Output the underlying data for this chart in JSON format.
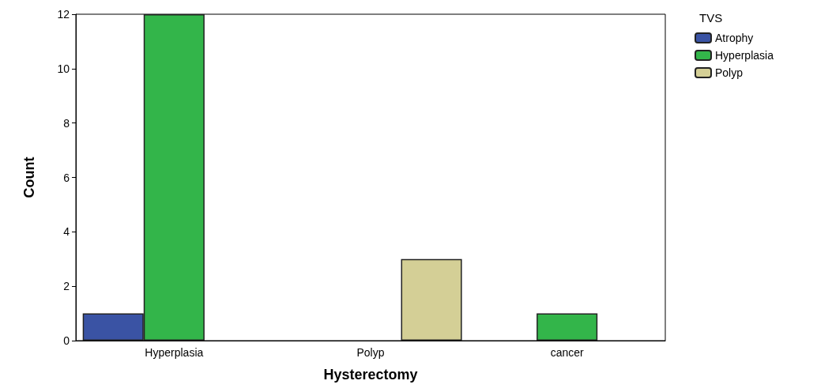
{
  "chart_data": {
    "type": "bar",
    "xlabel": "Hysterectomy",
    "ylabel": "Count",
    "legend_title": "TVS",
    "categories": [
      "Hyperplasia",
      "Polyp",
      "cancer"
    ],
    "series": [
      {
        "name": "Atrophy",
        "color": "#3a53a4",
        "values": [
          1,
          null,
          null
        ]
      },
      {
        "name": "Hyperplasia",
        "color": "#33b54a",
        "values": [
          12,
          null,
          1
        ]
      },
      {
        "name": "Polyp",
        "color": "#d4cf96",
        "values": [
          null,
          3,
          null
        ]
      }
    ],
    "ylim": [
      0,
      12
    ],
    "yticks": [
      0,
      2,
      4,
      6,
      8,
      10,
      12
    ],
    "grid": false,
    "legend": "top right"
  }
}
